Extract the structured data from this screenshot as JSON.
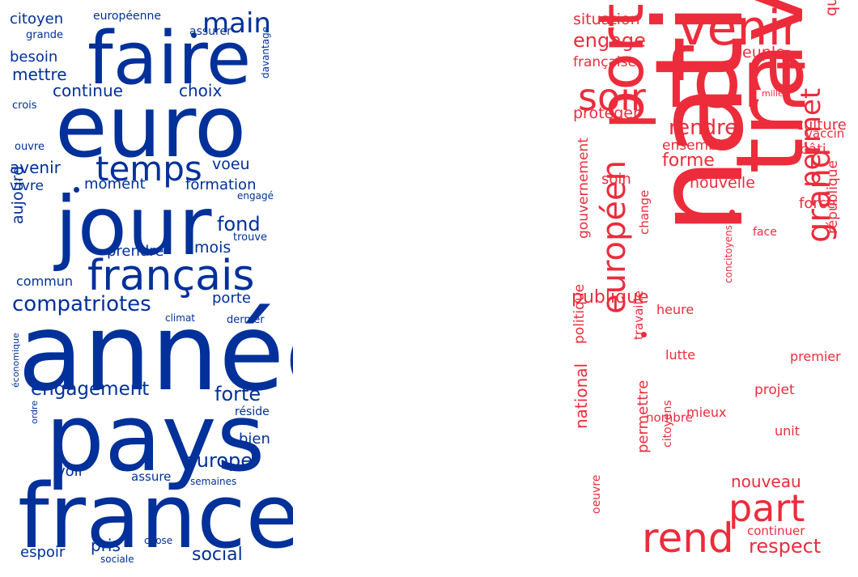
{
  "clouds": [
    {
      "name": "left",
      "color": "#00309a",
      "words": [
        "année",
        "pays",
        "france",
        "jour",
        "euro",
        "faire",
        "français",
        "temps",
        "compatriotes",
        "main",
        "engagement",
        "europe",
        "forte",
        "fond",
        "social",
        "continue",
        "choix",
        "mettre",
        "avenir",
        "voeu",
        "formation",
        "moment",
        "vivre",
        "citoyen",
        "européenne",
        "besoin",
        "mois",
        "prendre",
        "porte",
        "commun",
        "bien",
        "pris",
        "voir",
        "espoir",
        "aujourd",
        "assure",
        "semaines",
        "chose",
        "sociale",
        "réside",
        "grande",
        "assurer",
        "crois",
        "ouvre",
        "davantage",
        "engagé",
        "trouve",
        "climat",
        "dernier",
        "économique",
        "ordre"
      ]
    },
    {
      "name": "right",
      "color": "#ec2c3b",
      "words": [
        "nation",
        "travail",
        "fort",
        "port",
        "venir",
        "européen",
        "rend",
        "part",
        "grand",
        "permet",
        "soir",
        "engage",
        "rendre",
        "forme",
        "nouvelle",
        "publique",
        "respect",
        "nouveau",
        "situation",
        "peuple",
        "quotidien",
        "culture",
        "française",
        "protéger",
        "ensemble",
        "bâti",
        "vaccin",
        "soin",
        "force",
        "national",
        "politique",
        "permettre",
        "gouvernement",
        "change",
        "république",
        "face",
        "heure",
        "lutte",
        "premier",
        "projet",
        "mieux",
        "unit",
        "nombre",
        "travaille",
        "citoyens",
        "concitoyens",
        "continuer",
        "oeuvre",
        "mille"
      ]
    }
  ]
}
